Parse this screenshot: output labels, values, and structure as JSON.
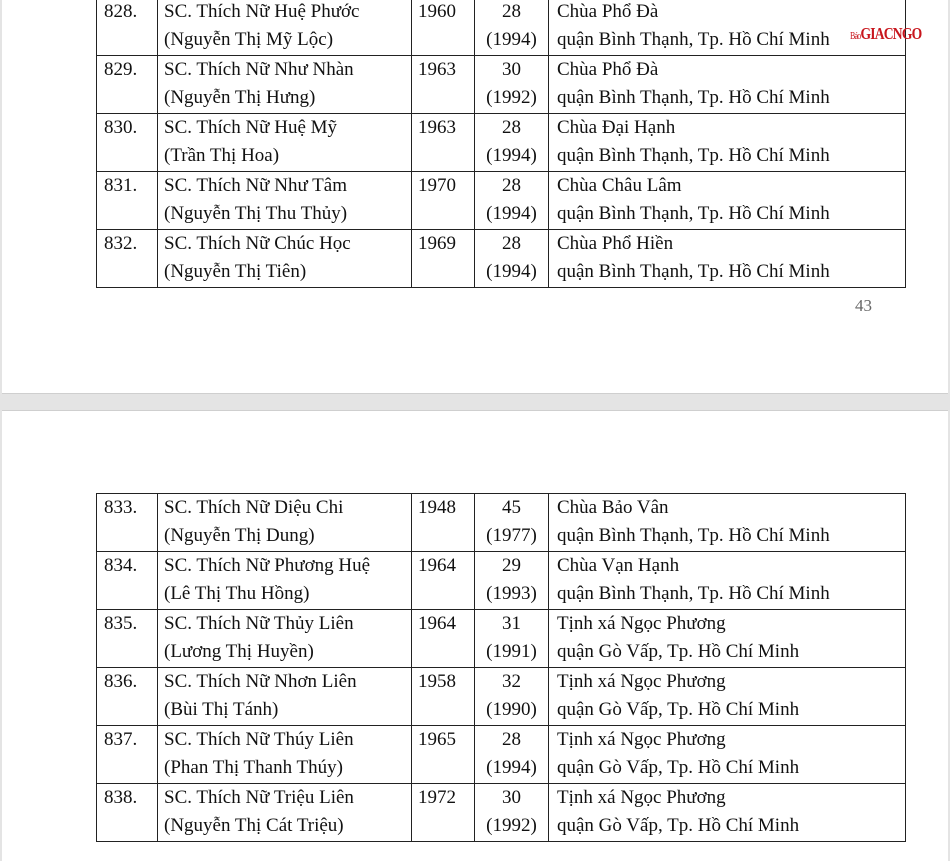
{
  "watermark": {
    "small": "Báo",
    "main": "GIACNGO",
    "color": "#c8161d"
  },
  "page1": {
    "page_number": "43",
    "rows": [
      {
        "no": "828.",
        "name": "SC. Thích Nữ Huệ Phước",
        "lay": "(Nguyễn Thị Mỹ Lộc)",
        "born": "1960",
        "age": "28",
        "year": "(1994)",
        "temple": "Chùa Phổ Đà",
        "addr": "quận Bình Thạnh, Tp. Hồ Chí Minh"
      },
      {
        "no": "829.",
        "name": "SC. Thích Nữ Như Nhàn",
        "lay": "(Nguyễn Thị Hưng)",
        "born": "1963",
        "age": "30",
        "year": "(1992)",
        "temple": "Chùa Phổ Đà",
        "addr": "quận Bình Thạnh, Tp. Hồ Chí Minh"
      },
      {
        "no": "830.",
        "name": "SC. Thích Nữ Huệ Mỹ",
        "lay": "(Trần Thị Hoa)",
        "born": "1963",
        "age": "28",
        "year": "(1994)",
        "temple": "Chùa Đại Hạnh",
        "addr": "quận Bình Thạnh, Tp. Hồ Chí Minh"
      },
      {
        "no": "831.",
        "name": "SC. Thích Nữ Như Tâm",
        "lay": "(Nguyễn Thị Thu Thủy)",
        "born": "1970",
        "age": "28",
        "year": "(1994)",
        "temple": "Chùa Châu Lâm",
        "addr": "quận Bình Thạnh, Tp. Hồ Chí Minh"
      },
      {
        "no": "832.",
        "name": "SC. Thích Nữ Chúc Học",
        "lay": "(Nguyễn Thị Tiên)",
        "born": "1969",
        "age": "28",
        "year": "(1994)",
        "temple": "Chùa Phổ Hiền",
        "addr": "quận Bình Thạnh, Tp. Hồ Chí Minh"
      }
    ]
  },
  "page2": {
    "rows": [
      {
        "no": "833.",
        "name": "SC. Thích Nữ Diệu Chi",
        "lay": "(Nguyễn Thị Dung)",
        "born": "1948",
        "age": "45",
        "year": "(1977)",
        "temple": "Chùa Bảo Vân",
        "addr": "quận Bình Thạnh, Tp. Hồ Chí Minh"
      },
      {
        "no": "834.",
        "name": "SC. Thích Nữ Phương Huệ",
        "lay": "(Lê Thị Thu Hồng)",
        "born": "1964",
        "age": "29",
        "year": "(1993)",
        "temple": "Chùa Vạn Hạnh",
        "addr": "quận Bình Thạnh, Tp. Hồ Chí Minh"
      },
      {
        "no": "835.",
        "name": "SC. Thích Nữ Thủy Liên",
        "lay": "(Lương Thị Huyền)",
        "born": "1964",
        "age": "31",
        "year": "(1991)",
        "temple": "Tịnh xá Ngọc Phương",
        "addr": "quận Gò Vấp, Tp. Hồ Chí Minh"
      },
      {
        "no": "836.",
        "name": "SC. Thích Nữ Nhơn Liên",
        "lay": "(Bùi Thị Tánh)",
        "born": "1958",
        "age": "32",
        "year": "(1990)",
        "temple": "Tịnh xá Ngọc Phương",
        "addr": "quận Gò Vấp, Tp. Hồ Chí Minh"
      },
      {
        "no": "837.",
        "name": "SC. Thích Nữ Thúy Liên",
        "lay": "(Phan Thị Thanh Thúy)",
        "born": "1965",
        "age": "28",
        "year": "(1994)",
        "temple": "Tịnh xá Ngọc Phương",
        "addr": "quận Gò Vấp, Tp. Hồ Chí Minh"
      },
      {
        "no": "838.",
        "name": "SC. Thích Nữ Triệu Liên",
        "lay": "(Nguyễn Thị Cát Triệu)",
        "born": "1972",
        "age": "30",
        "year": "(1992)",
        "temple": "Tịnh xá Ngọc Phương",
        "addr": "quận Gò Vấp, Tp. Hồ Chí Minh"
      }
    ]
  }
}
